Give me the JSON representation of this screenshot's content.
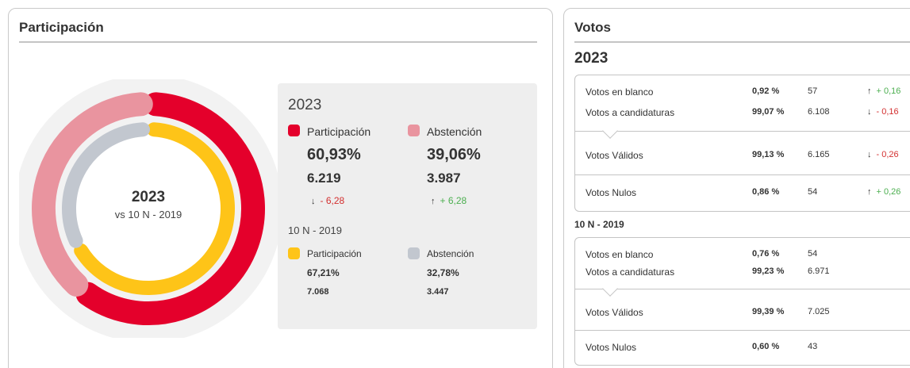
{
  "participacion": {
    "title": "Participación",
    "donut": {
      "center_year": "2023",
      "center_sub": "vs 10 N - 2019",
      "outer_participacion_pct": 60.93,
      "outer_abstencion_pct": 39.06,
      "inner_participacion_pct": 67.21,
      "inner_abstencion_pct": 32.78
    },
    "panel": {
      "current_year": "2023",
      "current": {
        "participacion": {
          "label": "Participación",
          "pct": "60,93%",
          "count": "6.219",
          "delta": "- 6,28",
          "delta_dir": "down"
        },
        "abstencion": {
          "label": "Abstención",
          "pct": "39,06%",
          "count": "3.987",
          "delta": "+ 6,28",
          "delta_dir": "up"
        }
      },
      "prev_label": "10 N - 2019",
      "prev": {
        "participacion": {
          "label": "Participación",
          "pct": "67,21%",
          "count": "7.068"
        },
        "abstencion": {
          "label": "Abstención",
          "pct": "32,78%",
          "count": "3.447"
        }
      }
    }
  },
  "votos": {
    "title": "Votos",
    "year": "2023",
    "current_rows": [
      {
        "label": "Votos en blanco",
        "pct": "0,92 %",
        "count": "57",
        "delta": "+ 0,16",
        "dir": "up"
      },
      {
        "label": "Votos a candidaturas",
        "pct": "99,07 %",
        "count": "6.108",
        "delta": "- 0,16",
        "dir": "down"
      },
      {
        "label": "Votos Válidos",
        "pct": "99,13 %",
        "count": "6.165",
        "delta": "- 0,26",
        "dir": "down"
      },
      {
        "label": "Votos Nulos",
        "pct": "0,86 %",
        "count": "54",
        "delta": "+ 0,26",
        "dir": "up"
      }
    ],
    "prev_title": "10 N - 2019",
    "prev_rows": [
      {
        "label": "Votos en blanco",
        "pct": "0,76 %",
        "count": "54"
      },
      {
        "label": "Votos a candidaturas",
        "pct": "99,23 %",
        "count": "6.971"
      },
      {
        "label": "Votos Válidos",
        "pct": "99,39 %",
        "count": "7.025"
      },
      {
        "label": "Votos Nulos",
        "pct": "0,60 %",
        "count": "43"
      }
    ]
  },
  "colors": {
    "participacion_current": "#e4002b",
    "abstencion_current": "#e9949f",
    "participacion_prev": "#fec418",
    "abstencion_prev": "#c2c7cf",
    "track": "#f2f2f2",
    "negative": "#d32f2f",
    "positive": "#4caf50"
  },
  "icons": {
    "down": "arrow-down-icon",
    "up": "arrow-up-icon"
  }
}
